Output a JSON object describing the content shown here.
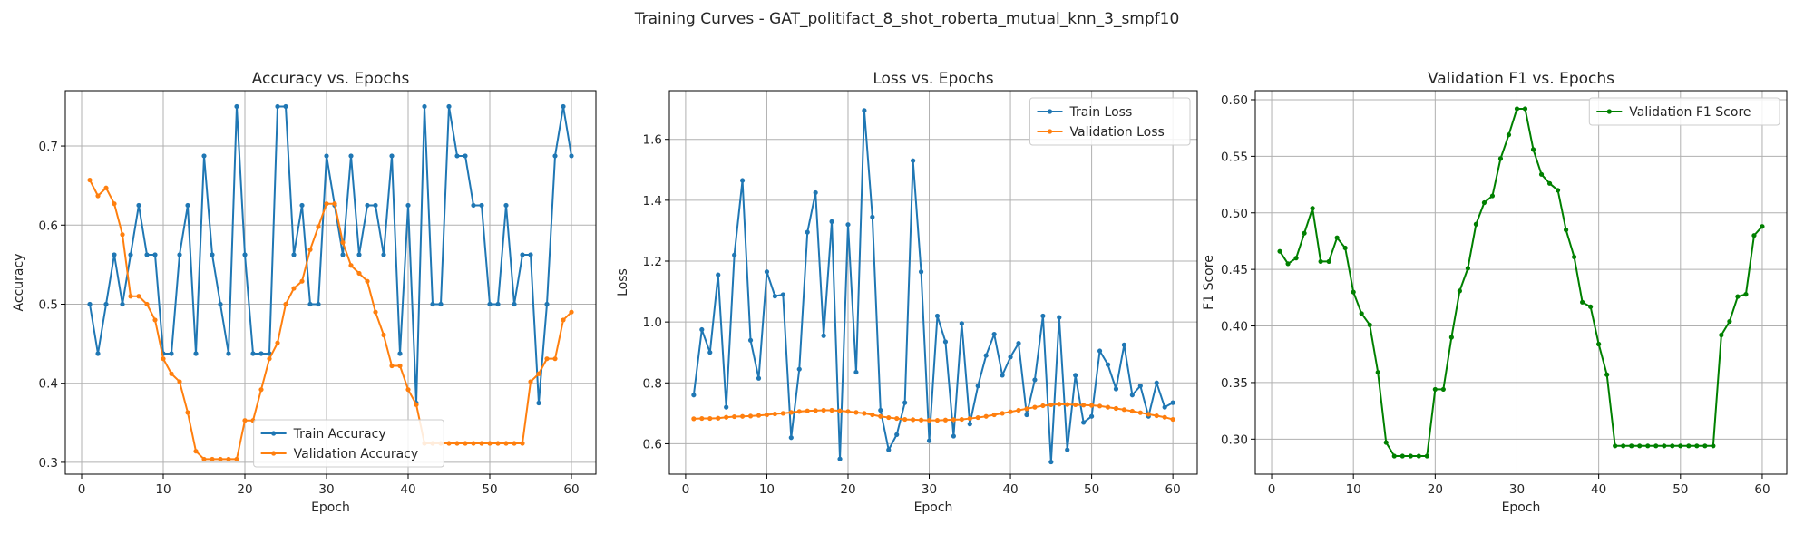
{
  "figure": {
    "suptitle": "Training Curves - GAT_politifact_8_shot_roberta_mutual_knn_3_smpf10"
  },
  "colors": {
    "blue": "#1f77b4",
    "orange": "#ff7f0e",
    "green": "#008000",
    "grid": "#b0b0b0"
  },
  "chart_data": [
    {
      "type": "line",
      "title": "Accuracy vs. Epochs",
      "xlabel": "Epoch",
      "ylabel": "Accuracy",
      "xlim": [
        -2,
        63
      ],
      "ylim": [
        0.285,
        0.77
      ],
      "xticks": [
        0,
        10,
        20,
        30,
        40,
        50,
        60
      ],
      "yticks": [
        0.3,
        0.4,
        0.5,
        0.6,
        0.7
      ],
      "grid": true,
      "legend_loc": "lower center",
      "x": [
        1,
        2,
        3,
        4,
        5,
        6,
        7,
        8,
        9,
        10,
        11,
        12,
        13,
        14,
        15,
        16,
        17,
        18,
        19,
        20,
        21,
        22,
        23,
        24,
        25,
        26,
        27,
        28,
        29,
        30,
        31,
        32,
        33,
        34,
        35,
        36,
        37,
        38,
        39,
        40,
        41,
        42,
        43,
        44,
        45,
        46,
        47,
        48,
        49,
        50,
        51,
        52,
        53,
        54,
        55,
        56,
        57,
        58,
        59,
        60
      ],
      "series": [
        {
          "name": "Train Accuracy",
          "color": "#1f77b4",
          "values": [
            0.5,
            0.4375,
            0.5,
            0.5625,
            0.5,
            0.5625,
            0.625,
            0.5625,
            0.5625,
            0.4375,
            0.4375,
            0.5625,
            0.625,
            0.4375,
            0.6875,
            0.5625,
            0.5,
            0.4375,
            0.75,
            0.5625,
            0.4375,
            0.4375,
            0.4375,
            0.75,
            0.75,
            0.5625,
            0.625,
            0.5,
            0.5,
            0.6875,
            0.625,
            0.5625,
            0.6875,
            0.5625,
            0.625,
            0.625,
            0.5625,
            0.6875,
            0.4375,
            0.625,
            0.375,
            0.75,
            0.5,
            0.5,
            0.75,
            0.6875,
            0.6875,
            0.625,
            0.625,
            0.5,
            0.5,
            0.625,
            0.5,
            0.5625,
            0.5625,
            0.375,
            0.5,
            0.6875,
            0.75,
            0.6875
          ]
        },
        {
          "name": "Validation Accuracy",
          "color": "#ff7f0e",
          "values": [
            0.657,
            0.637,
            0.647,
            0.627,
            0.588,
            0.51,
            0.51,
            0.5,
            0.48,
            0.431,
            0.412,
            0.402,
            0.363,
            0.314,
            0.304,
            0.304,
            0.304,
            0.304,
            0.304,
            0.353,
            0.353,
            0.392,
            0.431,
            0.451,
            0.5,
            0.52,
            0.529,
            0.569,
            0.598,
            0.627,
            0.627,
            0.578,
            0.549,
            0.539,
            0.529,
            0.49,
            0.461,
            0.422,
            0.422,
            0.392,
            0.373,
            0.324,
            0.324,
            0.324,
            0.324,
            0.324,
            0.324,
            0.324,
            0.324,
            0.324,
            0.324,
            0.324,
            0.324,
            0.324,
            0.402,
            0.412,
            0.431,
            0.431,
            0.48,
            0.49
          ]
        }
      ]
    },
    {
      "type": "line",
      "title": "Loss vs. Epochs",
      "xlabel": "Epoch",
      "ylabel": "Loss",
      "xlim": [
        -2,
        63
      ],
      "ylim": [
        0.5,
        1.76
      ],
      "xticks": [
        0,
        10,
        20,
        30,
        40,
        50,
        60
      ],
      "yticks": [
        0.6,
        0.8,
        1.0,
        1.2,
        1.4,
        1.6
      ],
      "grid": true,
      "legend_loc": "upper right",
      "x": [
        1,
        2,
        3,
        4,
        5,
        6,
        7,
        8,
        9,
        10,
        11,
        12,
        13,
        14,
        15,
        16,
        17,
        18,
        19,
        20,
        21,
        22,
        23,
        24,
        25,
        26,
        27,
        28,
        29,
        30,
        31,
        32,
        33,
        34,
        35,
        36,
        37,
        38,
        39,
        40,
        41,
        42,
        43,
        44,
        45,
        46,
        47,
        48,
        49,
        50,
        51,
        52,
        53,
        54,
        55,
        56,
        57,
        58,
        59,
        60
      ],
      "series": [
        {
          "name": "Train Loss",
          "color": "#1f77b4",
          "values": [
            0.76,
            0.975,
            0.9,
            1.155,
            0.72,
            1.22,
            1.465,
            0.94,
            0.815,
            1.165,
            1.085,
            1.09,
            0.62,
            0.845,
            1.295,
            1.425,
            0.955,
            1.33,
            0.55,
            1.32,
            0.835,
            1.695,
            1.345,
            0.71,
            0.58,
            0.63,
            0.735,
            1.53,
            1.165,
            0.61,
            1.02,
            0.935,
            0.625,
            0.995,
            0.665,
            0.79,
            0.89,
            0.96,
            0.825,
            0.885,
            0.93,
            0.695,
            0.81,
            1.02,
            0.54,
            1.015,
            0.58,
            0.825,
            0.67,
            0.69,
            0.905,
            0.86,
            0.78,
            0.925,
            0.76,
            0.79,
            0.69,
            0.8,
            0.72,
            0.735
          ]
        },
        {
          "name": "Validation Loss",
          "color": "#ff7f0e",
          "values": [
            0.682,
            0.683,
            0.683,
            0.684,
            0.687,
            0.689,
            0.69,
            0.691,
            0.693,
            0.695,
            0.698,
            0.7,
            0.703,
            0.706,
            0.708,
            0.709,
            0.71,
            0.71,
            0.708,
            0.706,
            0.703,
            0.7,
            0.695,
            0.69,
            0.686,
            0.683,
            0.68,
            0.679,
            0.678,
            0.677,
            0.677,
            0.678,
            0.679,
            0.68,
            0.683,
            0.686,
            0.69,
            0.695,
            0.7,
            0.705,
            0.71,
            0.715,
            0.72,
            0.725,
            0.728,
            0.73,
            0.729,
            0.728,
            0.727,
            0.726,
            0.724,
            0.72,
            0.716,
            0.712,
            0.707,
            0.702,
            0.697,
            0.692,
            0.687,
            0.68
          ]
        }
      ]
    },
    {
      "type": "line",
      "title": "Validation F1 vs. Epochs",
      "xlabel": "Epoch",
      "ylabel": "F1 Score",
      "xlim": [
        -2,
        63
      ],
      "ylim": [
        0.269,
        0.608
      ],
      "xticks": [
        0,
        10,
        20,
        30,
        40,
        50,
        60
      ],
      "yticks": [
        0.3,
        0.35,
        0.4,
        0.45,
        0.5,
        0.55,
        0.6
      ],
      "ytick_labels": [
        "0.30",
        "0.35",
        "0.40",
        "0.45",
        "0.50",
        "0.55",
        "0.60"
      ],
      "grid": true,
      "legend_loc": "upper right",
      "x": [
        1,
        2,
        3,
        4,
        5,
        6,
        7,
        8,
        9,
        10,
        11,
        12,
        13,
        14,
        15,
        16,
        17,
        18,
        19,
        20,
        21,
        22,
        23,
        24,
        25,
        26,
        27,
        28,
        29,
        30,
        31,
        32,
        33,
        34,
        35,
        36,
        37,
        38,
        39,
        40,
        41,
        42,
        43,
        44,
        45,
        46,
        47,
        48,
        49,
        50,
        51,
        52,
        53,
        54,
        55,
        56,
        57,
        58,
        59,
        60
      ],
      "series": [
        {
          "name": "Validation F1 Score",
          "color": "#008000",
          "values": [
            0.466,
            0.455,
            0.46,
            0.482,
            0.504,
            0.457,
            0.457,
            0.478,
            0.469,
            0.43,
            0.411,
            0.401,
            0.359,
            0.297,
            0.285,
            0.285,
            0.285,
            0.285,
            0.285,
            0.344,
            0.344,
            0.39,
            0.431,
            0.451,
            0.49,
            0.509,
            0.515,
            0.548,
            0.569,
            0.592,
            0.592,
            0.556,
            0.534,
            0.526,
            0.52,
            0.485,
            0.461,
            0.421,
            0.417,
            0.384,
            0.357,
            0.294,
            0.294,
            0.294,
            0.294,
            0.294,
            0.294,
            0.294,
            0.294,
            0.294,
            0.294,
            0.294,
            0.294,
            0.294,
            0.392,
            0.404,
            0.426,
            0.428,
            0.48,
            0.488
          ]
        }
      ]
    }
  ]
}
